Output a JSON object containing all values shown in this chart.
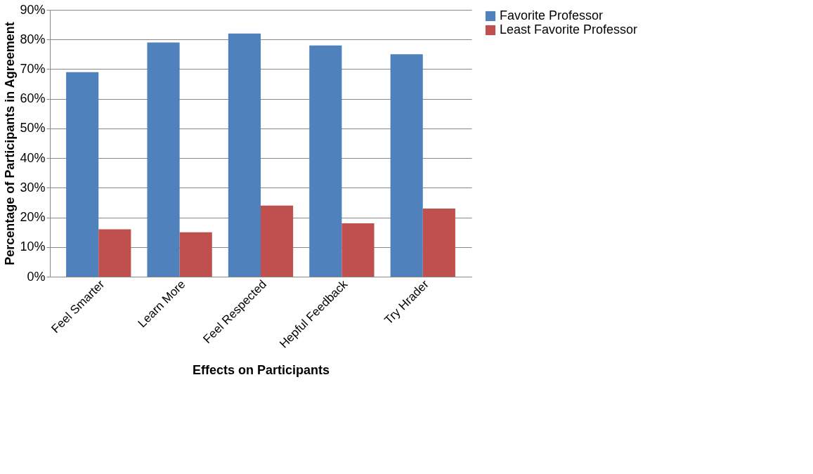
{
  "chart_data": {
    "type": "bar",
    "xlabel": "Effects on Participants",
    "ylabel": "Percentage of Participants in Agreement",
    "categories": [
      "Feel Smarter",
      "Learn More",
      "Feel Respected",
      "Hepful Feedback",
      "Try Hrader"
    ],
    "series": [
      {
        "name": "Favorite Professor",
        "color": "#4f81bd",
        "values": [
          69,
          79,
          82,
          78,
          75
        ]
      },
      {
        "name": "Least Favorite Professor",
        "color": "#c0504d",
        "values": [
          16,
          15,
          24,
          18,
          23
        ]
      }
    ],
    "ylim": [
      0,
      90
    ],
    "yticks": [
      {
        "value": 0,
        "label": "0%"
      },
      {
        "value": 10,
        "label": "10%"
      },
      {
        "value": 20,
        "label": "20%"
      },
      {
        "value": 30,
        "label": "30%"
      },
      {
        "value": 40,
        "label": "40%"
      },
      {
        "value": 50,
        "label": "50%"
      },
      {
        "value": 60,
        "label": "60%"
      },
      {
        "value": 70,
        "label": "70%"
      },
      {
        "value": 80,
        "label": "80%"
      },
      {
        "value": 90,
        "label": "90%"
      }
    ],
    "grid": "y",
    "legend": "right"
  }
}
